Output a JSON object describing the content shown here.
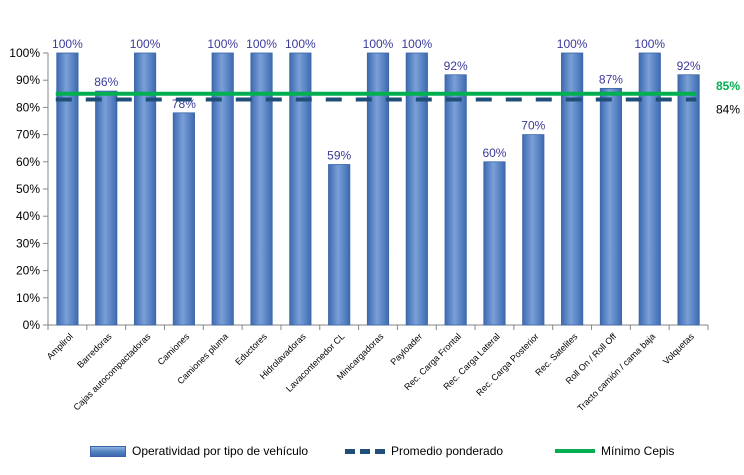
{
  "chart_data": {
    "type": "bar",
    "categories": [
      "Amplirol",
      "Barredoras",
      "Cajas autocompactadoras",
      "Camiones",
      "Camiones pluma",
      "Eductores",
      "Hidrolavadoras",
      "Lavacontenedor CL",
      "Minicargadoras",
      "Payloader",
      "Rec. Carga Frontal",
      "Rec. Carga Lateral",
      "Rec. Carga Posterior",
      "Rec. Satelites",
      "Roll On / Roll Off",
      "Tracto camión / cama baja",
      "Volquetas"
    ],
    "series": [
      {
        "name": "Operatividad por tipo de vehículo",
        "kind": "bar",
        "color": "#4f81bd",
        "values": [
          100,
          86,
          100,
          78,
          100,
          100,
          100,
          59,
          100,
          100,
          92,
          60,
          70,
          100,
          87,
          100,
          92
        ],
        "labels": [
          "100%",
          "86%",
          "100%",
          "78%",
          "100%",
          "100%",
          "100%",
          "59%",
          "100%",
          "100%",
          "92%",
          "60%",
          "70%",
          "100%",
          "87%",
          "100%",
          "92%"
        ]
      },
      {
        "name": "Promedio ponderado",
        "kind": "dashed-line",
        "color": "#1f4e79",
        "value": 84,
        "label": "84%"
      },
      {
        "name": "Mínimo Cepis",
        "kind": "line",
        "color": "#00b050",
        "value": 85,
        "label": "85%"
      }
    ],
    "yticks": [
      "0%",
      "10%",
      "20%",
      "30%",
      "40%",
      "50%",
      "60%",
      "70%",
      "80%",
      "90%",
      "100%"
    ],
    "ylim": [
      0,
      100
    ],
    "grid": false,
    "legend_position": "bottom",
    "xlabel": "",
    "ylabel": "",
    "title": ""
  }
}
